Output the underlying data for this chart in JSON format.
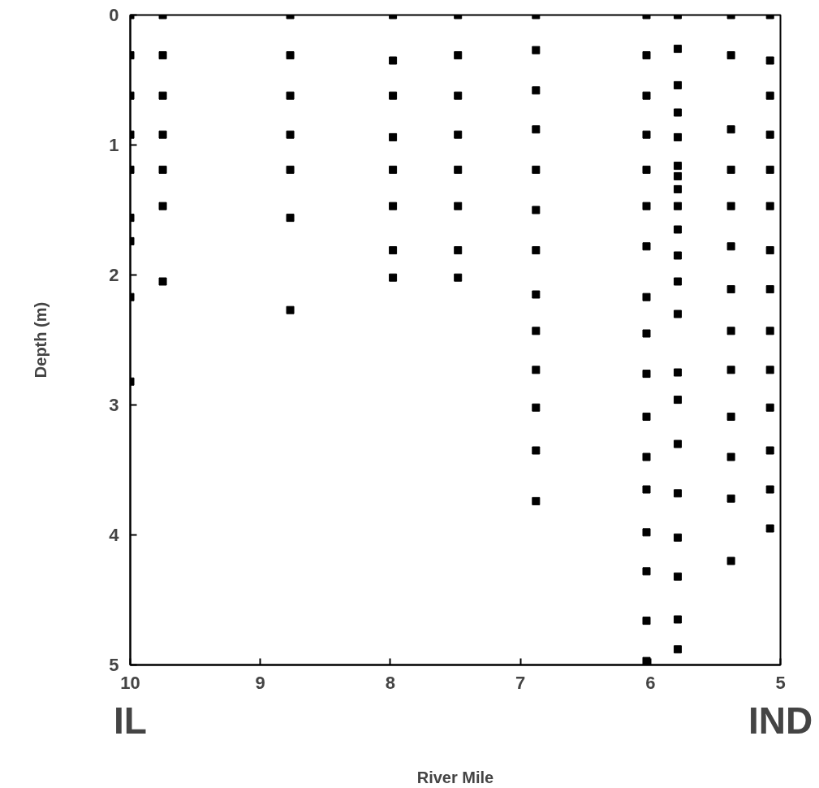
{
  "chart_data": {
    "type": "scatter",
    "xlabel": "River Mile",
    "ylabel": "Depth (m)",
    "xlim": [
      10,
      5
    ],
    "ylim": [
      5,
      0
    ],
    "xticks": [
      10,
      9,
      8,
      7,
      6,
      5
    ],
    "yticks": [
      0,
      1,
      2,
      3,
      4,
      5
    ],
    "grid": false,
    "marker": "square",
    "annotations": [
      "IL",
      "IND"
    ],
    "series": [
      {
        "color": "#000000",
        "x": [
          10,
          10,
          10,
          10,
          10,
          10,
          10,
          10,
          10,
          9.75,
          9.75,
          9.75,
          9.75,
          9.75,
          9.75,
          9.75,
          8.77,
          8.77,
          8.77,
          8.77,
          8.77,
          8.77,
          8.77,
          7.98,
          7.98,
          7.98,
          7.98,
          7.98,
          7.98,
          7.98,
          7.98,
          7.48,
          7.48,
          7.48,
          7.48,
          7.48,
          7.48,
          7.48,
          7.48,
          6.88,
          6.88,
          6.88,
          6.88,
          6.88,
          6.88,
          6.88,
          6.88,
          6.88,
          6.88,
          6.88,
          6.88,
          6.88,
          6.03,
          6.03,
          6.03,
          6.03,
          6.03,
          6.03,
          6.03,
          6.03,
          6.03,
          6.03,
          6.03,
          6.03,
          6.03,
          6.03,
          6.03,
          6.03,
          6.03,
          5.79,
          5.79,
          5.79,
          5.79,
          5.79,
          5.79,
          5.79,
          5.79,
          5.79,
          5.79,
          5.79,
          5.79,
          5.79,
          5.79,
          5.79,
          5.79,
          5.79,
          5.79,
          5.79,
          5.79,
          5.79,
          5.38,
          5.38,
          5.38,
          5.38,
          5.38,
          5.38,
          5.38,
          5.38,
          5.38,
          5.38,
          5.38,
          5.38,
          5.38,
          5.08,
          5.08,
          5.08,
          5.08,
          5.08,
          5.08,
          5.08,
          5.08,
          5.08,
          5.08,
          5.08,
          5.08,
          5.08,
          5.08
        ],
        "values": [
          0,
          0.31,
          0.62,
          0.92,
          1.19,
          1.56,
          1.74,
          2.17,
          2.82,
          0,
          0.31,
          0.62,
          0.92,
          1.19,
          1.47,
          2.05,
          0,
          0.31,
          0.62,
          0.92,
          1.19,
          1.56,
          2.27,
          0,
          0.35,
          0.62,
          0.94,
          1.19,
          1.47,
          1.81,
          2.02,
          0,
          0.31,
          0.62,
          0.92,
          1.19,
          1.47,
          1.81,
          2.02,
          0,
          0.27,
          0.58,
          0.88,
          1.19,
          1.5,
          1.81,
          2.15,
          2.43,
          2.73,
          3.02,
          3.35,
          3.74,
          0,
          0.31,
          0.62,
          0.92,
          1.19,
          1.47,
          1.78,
          2.17,
          2.45,
          2.76,
          3.09,
          3.4,
          3.65,
          3.98,
          4.28,
          4.66,
          4.97,
          0,
          0.26,
          0.54,
          0.75,
          0.94,
          1.16,
          1.24,
          1.34,
          1.47,
          1.65,
          1.85,
          2.05,
          2.3,
          2.75,
          2.96,
          3.3,
          3.68,
          4.02,
          4.32,
          4.65,
          4.88,
          0,
          0.31,
          0.88,
          1.19,
          1.47,
          1.78,
          2.11,
          2.43,
          2.73,
          3.09,
          3.4,
          3.72,
          4.2,
          0,
          0.35,
          0.62,
          0.92,
          1.19,
          1.47,
          1.81,
          2.11,
          2.43,
          2.73,
          3.02,
          3.35,
          3.65,
          3.95
        ]
      }
    ]
  }
}
